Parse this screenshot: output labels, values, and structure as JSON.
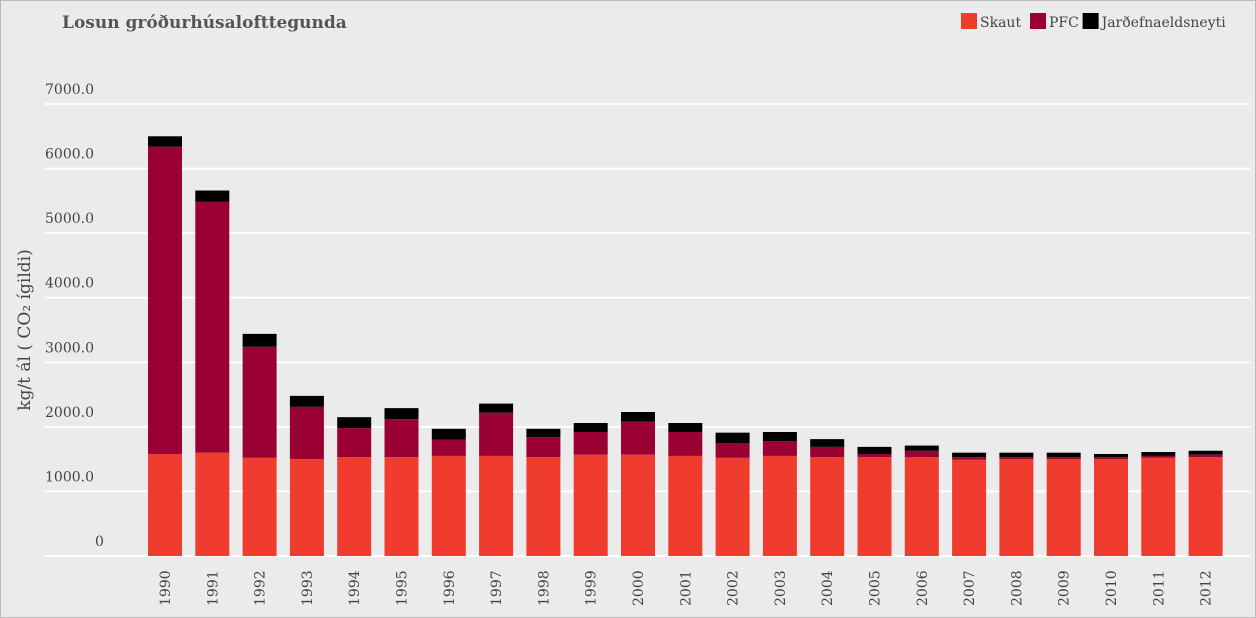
{
  "chart_data": {
    "type": "stacked_bar",
    "title": "Losun gróðurhúsalofttegunda",
    "y_label": "kg/t ál ( CO₂ ígildi)",
    "categories": [
      "1990",
      "1991",
      "1992",
      "1993",
      "1994",
      "1995",
      "1996",
      "1997",
      "1998",
      "1999",
      "2000",
      "2001",
      "2002",
      "2003",
      "2004",
      "2005",
      "2006",
      "2007",
      "2008",
      "2009",
      "2010",
      "2011",
      "2012"
    ],
    "series": [
      {
        "name": "Skaut",
        "color": "#f03c2e",
        "values": [
          1580,
          1600,
          1520,
          1500,
          1530,
          1530,
          1550,
          1550,
          1530,
          1570,
          1570,
          1550,
          1520,
          1550,
          1530,
          1530,
          1530,
          1490,
          1500,
          1500,
          1500,
          1520,
          1530
        ]
      },
      {
        "name": "PFC",
        "color": "#9b0032",
        "values": [
          4760,
          3890,
          1720,
          810,
          450,
          590,
          250,
          670,
          310,
          350,
          510,
          370,
          230,
          230,
          160,
          50,
          100,
          40,
          30,
          30,
          30,
          30,
          40
        ]
      },
      {
        "name": "Jarðefnaeldsneyti",
        "color": "#000000",
        "values": [
          160,
          170,
          200,
          170,
          170,
          170,
          170,
          140,
          130,
          140,
          150,
          140,
          160,
          140,
          120,
          110,
          80,
          70,
          70,
          70,
          50,
          60,
          60
        ]
      }
    ],
    "ylim": [
      0,
      7000
    ],
    "yticks": [
      0,
      {
        "value": 1000,
        "label": "1000.0"
      },
      {
        "value": 2000,
        "label": "2000.0"
      },
      {
        "value": 3000,
        "label": "3000.0"
      },
      {
        "value": 4000,
        "label": "4000.0"
      },
      {
        "value": 5000,
        "label": "5000.0"
      },
      {
        "value": 6000,
        "label": "6000.0"
      },
      {
        "value": 7000,
        "label": "7000.0"
      }
    ],
    "grid": true,
    "legend": "top-right"
  }
}
